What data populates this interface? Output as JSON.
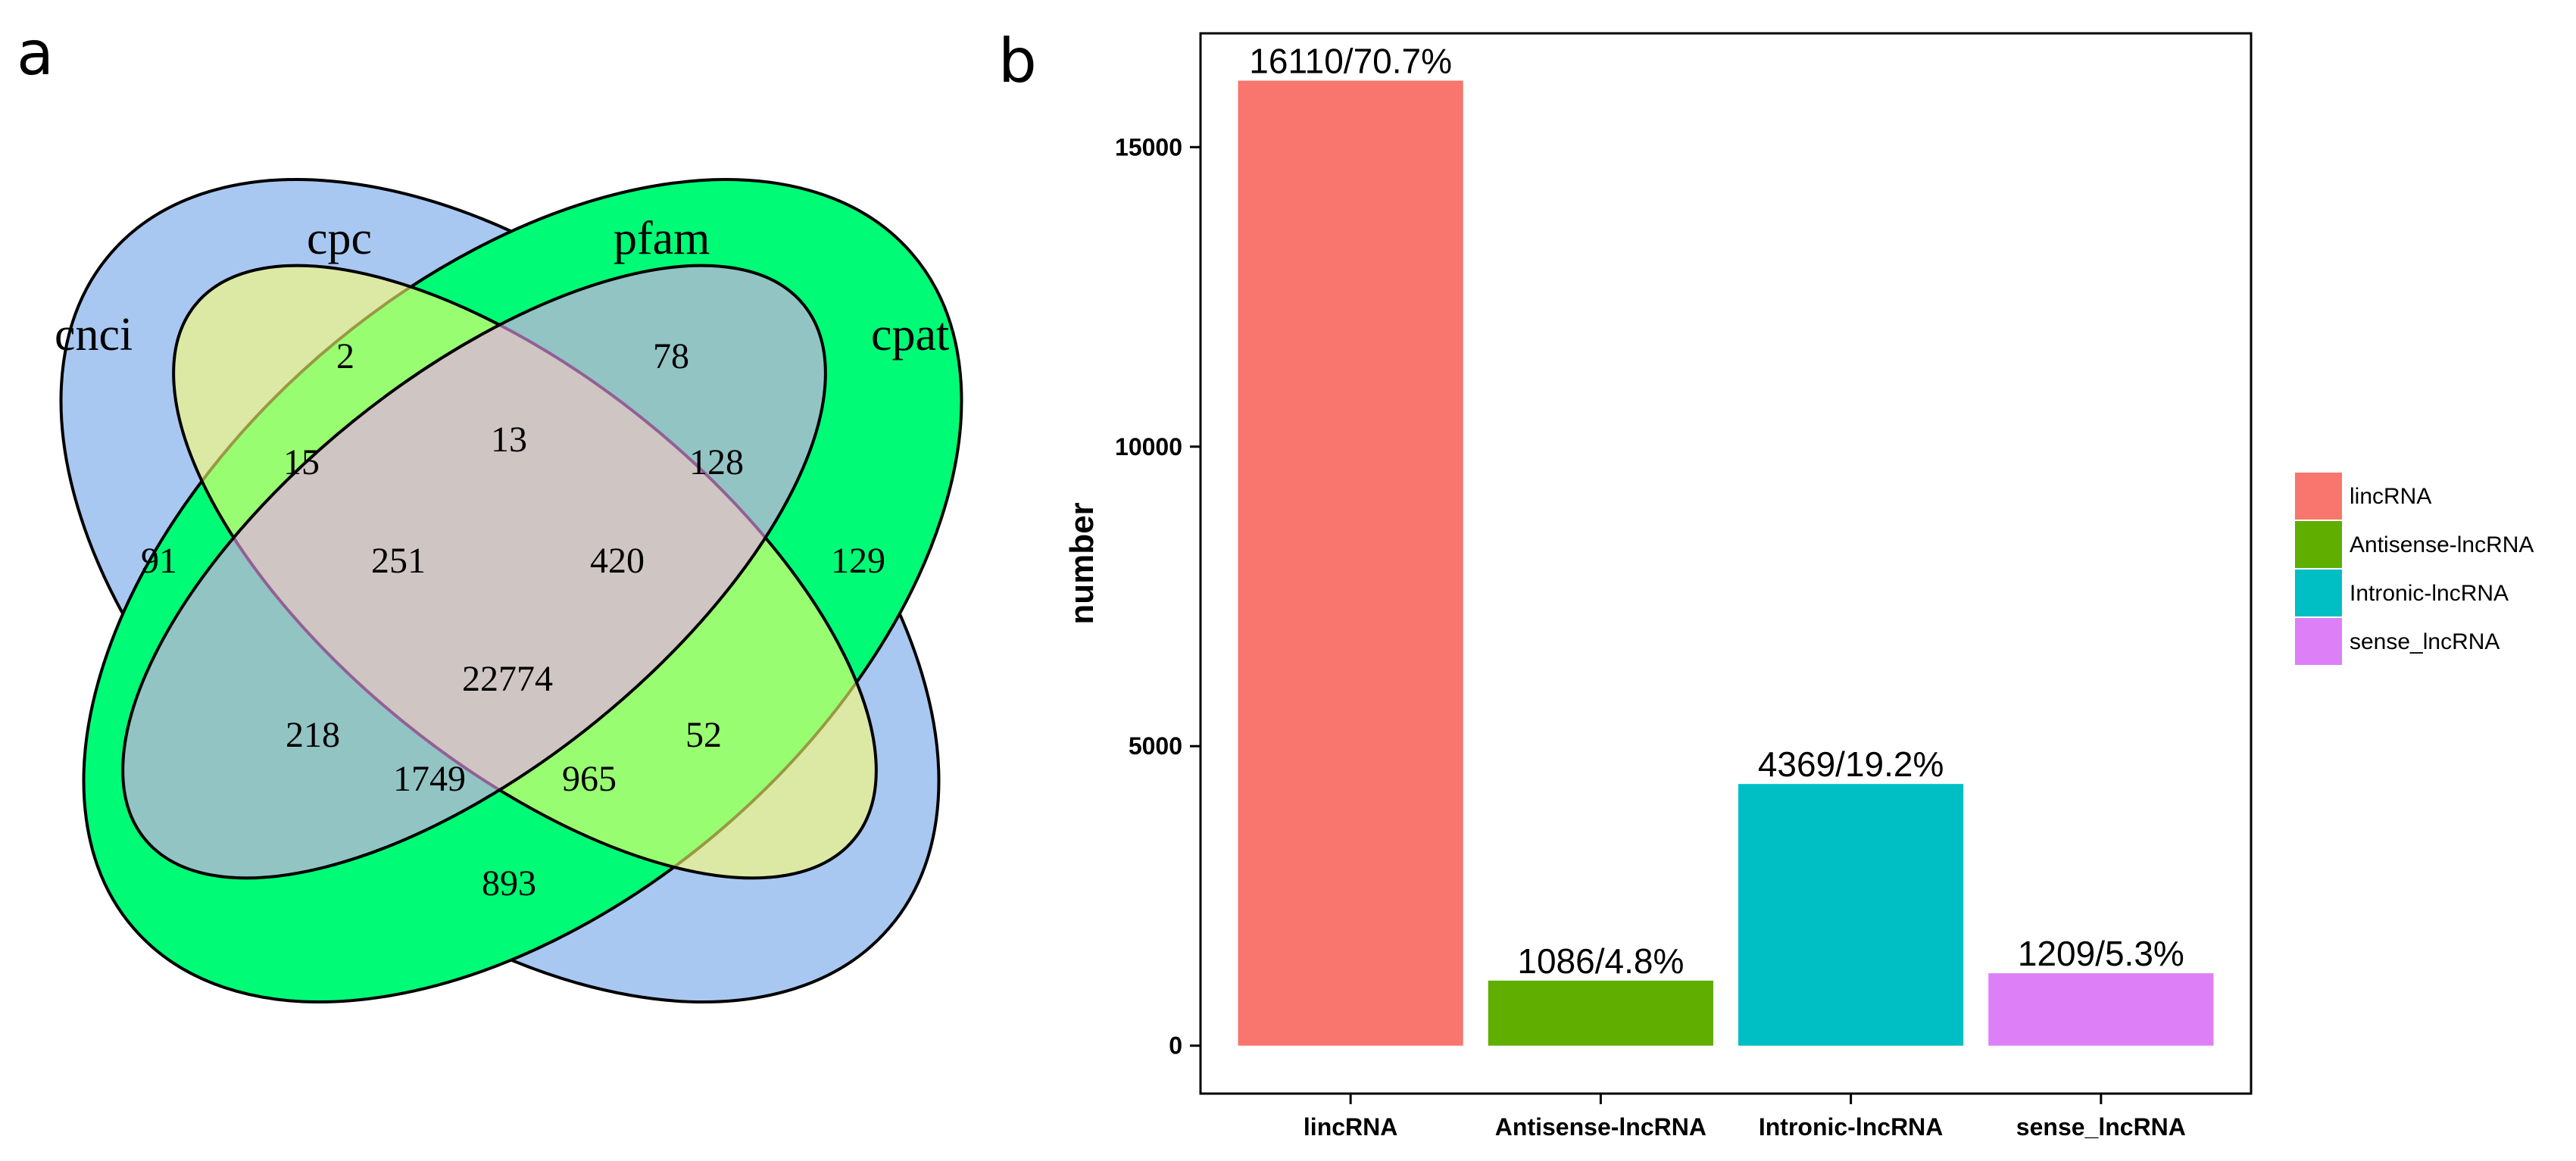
{
  "panels": {
    "a": "a",
    "b": "b"
  },
  "venn": {
    "sets": [
      {
        "name": "cnci",
        "color": "#a8c8f2"
      },
      {
        "name": "cpc",
        "color": "#ffff70"
      },
      {
        "name": "pfam",
        "color": "#f3a0f8"
      },
      {
        "name": "cpat",
        "color": "#00fb76"
      }
    ],
    "regions": [
      {
        "sets": "cnci",
        "value": "91"
      },
      {
        "sets": "cpc",
        "value": "2"
      },
      {
        "sets": "pfam",
        "value": "78"
      },
      {
        "sets": "cpat",
        "value": "129"
      },
      {
        "sets": "cnci&cpc",
        "value": "15"
      },
      {
        "sets": "cpc&pfam",
        "value": "13"
      },
      {
        "sets": "pfam&cpat",
        "value": "128"
      },
      {
        "sets": "cnci&cpc&pfam",
        "value": "251"
      },
      {
        "sets": "cpc&pfam&cpat",
        "value": "420"
      },
      {
        "sets": "cnci&cpc&pfam&cpat",
        "value": "22774"
      },
      {
        "sets": "cnci&pfam",
        "value": "218"
      },
      {
        "sets": "cpc&cpat",
        "value": "52"
      },
      {
        "sets": "cnci&pfam&cpat",
        "value": "1749"
      },
      {
        "sets": "cnci&cpc&cpat",
        "value": "965"
      },
      {
        "sets": "cnci&cpat",
        "value": "893"
      }
    ]
  },
  "chart_data": {
    "type": "bar",
    "categories": [
      "lincRNA",
      "Antisense-lncRNA",
      "Intronic-lncRNA",
      "sense_lncRNA"
    ],
    "values": [
      16110,
      1086,
      4369,
      1209
    ],
    "data_labels": [
      "16110/70.7%",
      "1086/4.8%",
      "4369/19.2%",
      "1209/5.3%"
    ],
    "colors": [
      "#f8766d",
      "#5fae00",
      "#00bfc4",
      "#dd80f7"
    ],
    "xlabel": "",
    "ylabel": "number",
    "yticks": [
      0,
      5000,
      10000,
      15000
    ],
    "ylim": [
      -800,
      16900
    ],
    "grid": false,
    "legend": {
      "placement": "right",
      "entries": [
        "lincRNA",
        "Antisense-lncRNA",
        "Intronic-lncRNA",
        "sense_lncRNA"
      ]
    }
  }
}
